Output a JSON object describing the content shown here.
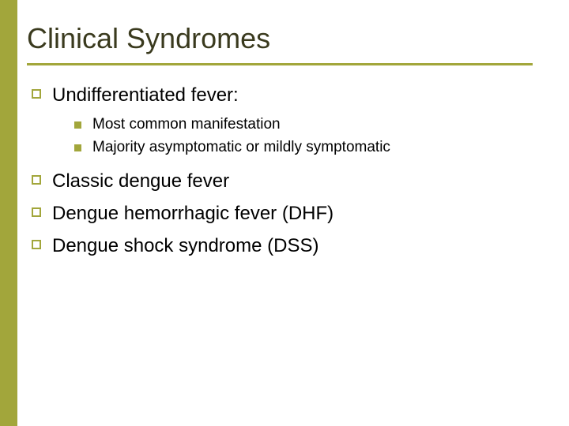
{
  "colors": {
    "sidebar": "#a2a63b",
    "accent": "#a2a63b",
    "title": "#3a3a1e",
    "body": "#000000"
  },
  "title": "Clinical Syndromes",
  "items": [
    {
      "text": "Undifferentiated fever:",
      "sub": [
        "Most common manifestation",
        "Majority asymptomatic or mildly symptomatic"
      ]
    },
    {
      "text": "Classic dengue fever",
      "sub": []
    },
    {
      "text": "Dengue hemorrhagic fever (DHF)",
      "sub": []
    },
    {
      "text": "Dengue shock syndrome (DSS)",
      "sub": []
    }
  ]
}
